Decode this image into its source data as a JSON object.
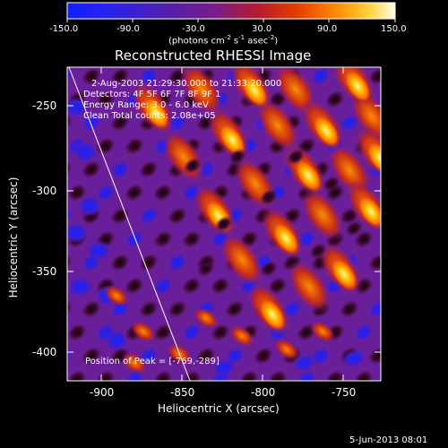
{
  "colorbar": {
    "ticks": [
      "-150.0",
      "-90.0",
      "-30.0",
      "30.0",
      "90.0",
      "150.0"
    ],
    "units_main": "(photons cm",
    "units_exp1": "-2",
    "units_mid": " s",
    "units_exp2": "-1",
    "units_end": " asec",
    "units_exp3": "-2",
    "units_close": ")",
    "colors": [
      "#1020ff",
      "#4b1fb5",
      "#7a1c88",
      "#b51b2f",
      "#e63c00",
      "#ff8b00",
      "#ffd23a",
      "#fffde8"
    ]
  },
  "plot": {
    "title": "Reconstructed RHESSI Image",
    "xlabel": "Heliocentric X (arcsec)",
    "ylabel": "Heliocentric Y (arcsec)",
    "xticks": [
      "-900",
      "-850",
      "-800",
      "-750"
    ],
    "yticks": [
      "-250",
      "-300",
      "-350",
      "-400"
    ]
  },
  "overlay": {
    "time": "2-Aug-2003 21:29:30.000 to 21:33:20.000",
    "detectors": "Detectors: 4F 5F 6F 7F 8F 9F 1",
    "energy": "Energy Range: 3.0 - 6.0 keV",
    "clean": "Clean     Total counts: 2.08e+05",
    "peak": "Position of Peak = [-769,-289]"
  },
  "timestamp": "5-Jun-2013 08:01"
}
